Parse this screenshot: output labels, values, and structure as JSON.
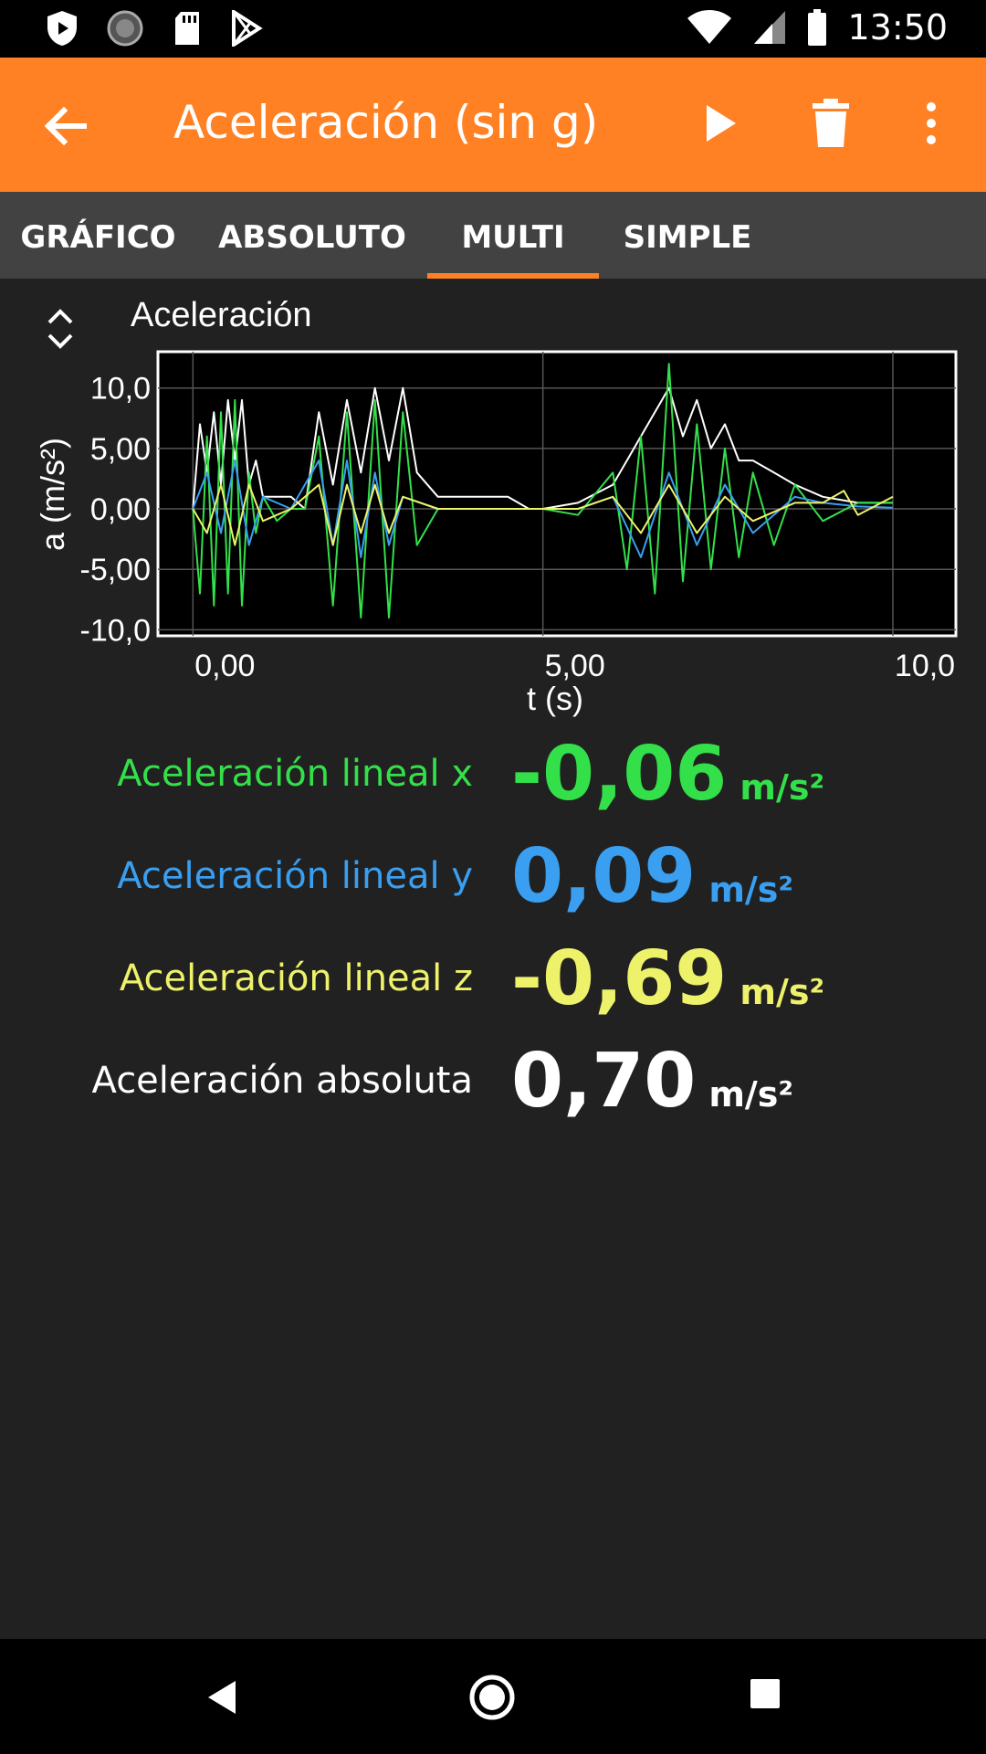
{
  "status_bar": {
    "time": "13:50",
    "left_icons": [
      "shield-icon",
      "sync-icon",
      "sd-card-icon",
      "play-store-icon"
    ],
    "right_icons": [
      "wifi-icon",
      "signal-icon",
      "battery-icon"
    ]
  },
  "app_bar": {
    "title": "Aceleración (sin g)",
    "accent_color": "#ff8124",
    "icons": [
      "arrow-back-icon",
      "play-icon",
      "delete-icon",
      "more-vert-icon"
    ]
  },
  "tabs": [
    {
      "label": "GRÁFICO",
      "active": false
    },
    {
      "label": "ABSOLUTO",
      "active": false
    },
    {
      "label": "MULTI",
      "active": true
    },
    {
      "label": "SIMPLE",
      "active": false
    }
  ],
  "chart_data": {
    "type": "line",
    "title": "Aceleración",
    "xlabel": "t (s)",
    "ylabel": "a (m/s²)",
    "xlim": [
      -0.5,
      10.9
    ],
    "ylim": [
      -10.5,
      13.0
    ],
    "x_ticks": [
      0,
      5,
      10
    ],
    "x_tick_labels": [
      "0,00",
      "5,00",
      "10,0"
    ],
    "y_ticks": [
      10,
      5,
      0,
      -5,
      -10
    ],
    "y_tick_labels": [
      "10,0",
      "5,00",
      "0,00",
      "-5,00",
      "-10,0"
    ],
    "grid": true,
    "series": [
      {
        "color": "#ffffff",
        "x": [
          0,
          0.1,
          0.2,
          0.3,
          0.4,
          0.5,
          0.6,
          0.7,
          0.8,
          0.9,
          1.0,
          1.2,
          1.4,
          1.6,
          1.8,
          2.0,
          2.2,
          2.4,
          2.6,
          2.8,
          3.0,
          3.2,
          3.5,
          4.0,
          4.5,
          4.8,
          5.0,
          5.5,
          6.0,
          6.2,
          6.4,
          6.6,
          6.8,
          7.0,
          7.2,
          7.4,
          7.6,
          7.8,
          8.0,
          8.3,
          8.6,
          9.0,
          9.5,
          10.0
        ],
        "values": [
          0,
          7,
          3,
          8,
          2,
          9,
          4,
          9,
          2,
          4,
          1,
          1,
          1,
          0,
          8,
          2,
          9,
          3,
          10,
          4,
          10,
          3,
          1,
          1,
          1,
          0,
          0,
          0.5,
          2,
          4,
          6,
          8,
          10,
          6,
          9,
          5,
          7,
          4,
          4,
          3,
          2,
          1,
          0.5,
          0.5
        ]
      },
      {
        "color": "#33e04a",
        "x": [
          0,
          0.1,
          0.2,
          0.3,
          0.4,
          0.5,
          0.6,
          0.7,
          0.8,
          0.9,
          1.0,
          1.2,
          1.4,
          1.6,
          1.8,
          2.0,
          2.2,
          2.4,
          2.6,
          2.8,
          3.0,
          3.2,
          3.5,
          4.0,
          4.5,
          4.8,
          5.0,
          5.5,
          6.0,
          6.2,
          6.4,
          6.6,
          6.8,
          7.0,
          7.2,
          7.4,
          7.6,
          7.8,
          8.0,
          8.3,
          8.6,
          9.0,
          9.5,
          10.0
        ],
        "values": [
          0,
          -7,
          6,
          -8,
          8,
          -7,
          9,
          -8,
          3,
          -2,
          1,
          -1,
          0,
          0,
          6,
          -8,
          8,
          -9,
          9,
          -9,
          8,
          -3,
          0,
          0,
          0,
          0,
          0,
          -0.5,
          3,
          -5,
          6,
          -7,
          12,
          -6,
          7,
          -5,
          5,
          -4,
          3,
          -3,
          2,
          -1,
          0.5,
          0.5
        ]
      },
      {
        "color": "#3a9ff0",
        "x": [
          0,
          0.2,
          0.4,
          0.6,
          0.8,
          1.0,
          1.4,
          1.8,
          2.0,
          2.2,
          2.4,
          2.6,
          2.8,
          3.0,
          3.5,
          4.0,
          4.5,
          5.0,
          5.5,
          6.0,
          6.4,
          6.8,
          7.2,
          7.6,
          8.0,
          8.6,
          9.0,
          9.5,
          10.0
        ],
        "values": [
          0,
          3,
          -2,
          4,
          -3,
          1,
          0,
          4,
          -3,
          4,
          -4,
          3,
          -3,
          1,
          0,
          0,
          0,
          0,
          0,
          1,
          -4,
          3,
          -3,
          2,
          -2,
          1,
          0.5,
          0.2,
          0.1
        ]
      },
      {
        "color": "#eef26a",
        "x": [
          0,
          0.2,
          0.4,
          0.6,
          0.8,
          1.0,
          1.4,
          1.8,
          2.0,
          2.2,
          2.4,
          2.6,
          2.8,
          3.0,
          3.5,
          4.0,
          4.5,
          5.0,
          5.5,
          6.0,
          6.4,
          6.8,
          7.2,
          7.6,
          8.0,
          8.6,
          9.0,
          9.3,
          9.5,
          10.0
        ],
        "values": [
          0,
          -2,
          2,
          -3,
          2,
          -1,
          0,
          2,
          -3,
          2,
          -2,
          2,
          -2,
          1,
          0,
          0,
          0,
          0,
          0,
          1,
          -2,
          2,
          -2,
          1,
          -1,
          0.5,
          0.5,
          1.5,
          -0.5,
          1
        ]
      }
    ]
  },
  "readings": [
    {
      "label": "Aceleración lineal x",
      "value": "-0,06",
      "unit": "m/s²",
      "color": "#33e04a"
    },
    {
      "label": "Aceleración lineal y",
      "value": "0,09",
      "unit": "m/s²",
      "color": "#3a9ff0"
    },
    {
      "label": "Aceleración lineal z",
      "value": "-0,69",
      "unit": "m/s²",
      "color": "#eef26a"
    },
    {
      "label": "Aceleración absoluta",
      "value": "0,70",
      "unit": "m/s²",
      "color": "#ffffff"
    }
  ],
  "nav_bar": {
    "icons": [
      "back-triangle-icon",
      "home-circle-icon",
      "recents-square-icon"
    ]
  }
}
